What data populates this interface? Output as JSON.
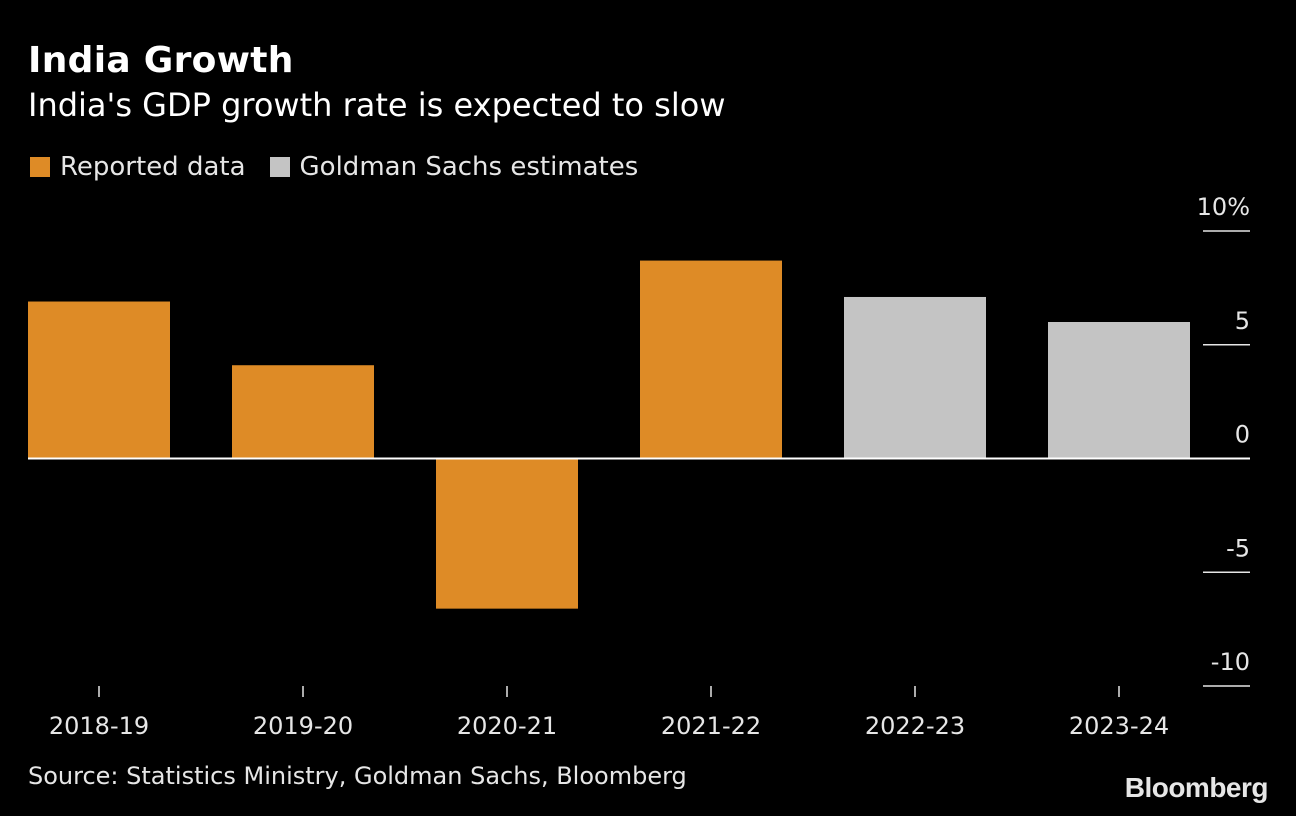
{
  "chart_data": {
    "type": "bar",
    "title": "India Growth",
    "subtitle": "India's GDP growth rate is expected to slow",
    "categories": [
      "2018-19",
      "2019-20",
      "2020-21",
      "2021-22",
      "2022-23",
      "2023-24"
    ],
    "values": [
      6.9,
      4.1,
      -6.6,
      8.7,
      7.1,
      6.0
    ],
    "series_of_bar": [
      "Reported data",
      "Reported data",
      "Reported data",
      "Reported data",
      "Goldman Sachs estimates",
      "Goldman Sachs estimates"
    ],
    "legend": [
      {
        "name": "Reported data",
        "color": "#de8b26"
      },
      {
        "name": "Goldman Sachs estimates",
        "color": "#c4c4c4"
      }
    ],
    "yticks": [
      10,
      5,
      0,
      -5,
      -10
    ],
    "ytick_labels": [
      "10%",
      "5",
      "0",
      "-5",
      "-10"
    ],
    "ylim": [
      -10,
      10
    ],
    "axis_position": "right",
    "source": "Source: Statistics Ministry, Goldman Sachs, Bloomberg",
    "brand": "Bloomberg"
  }
}
